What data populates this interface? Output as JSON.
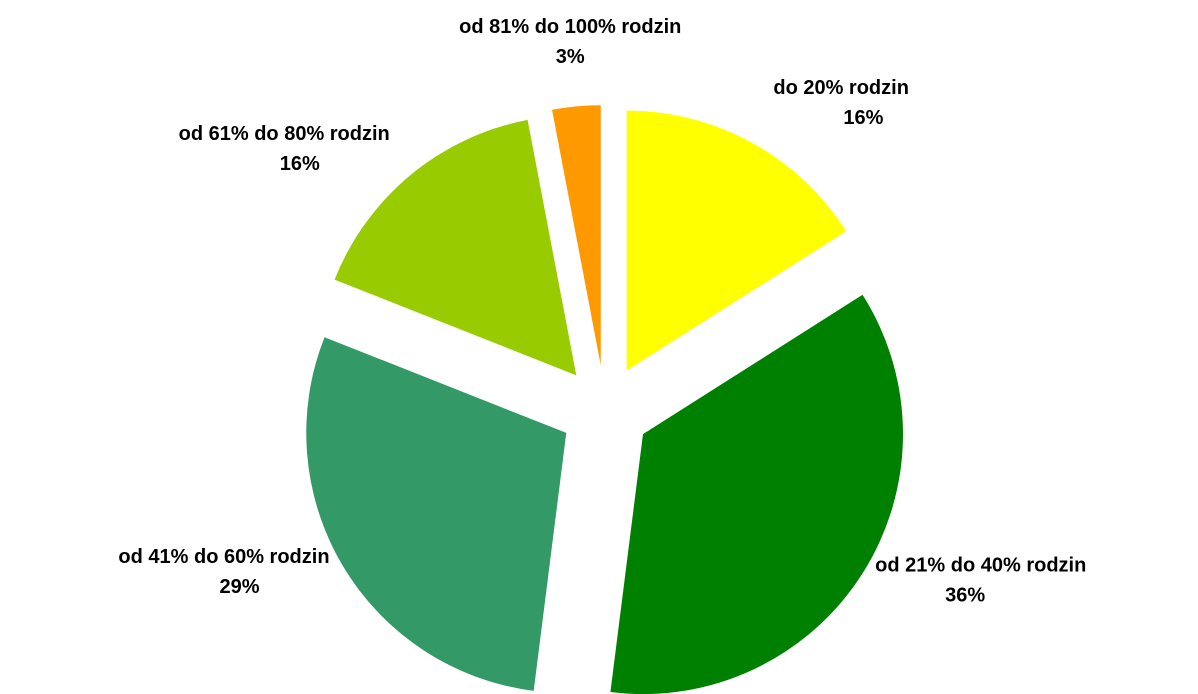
{
  "chart_data": {
    "type": "pie",
    "categories": [
      "do 20% rodzin",
      "od 21% do 40% rodzin",
      "od 41% do 60% rodzin",
      "od 61% do 80% rodzin",
      "od 81% do 100% rodzin"
    ],
    "values": [
      16,
      36,
      29,
      16,
      3
    ],
    "value_labels": [
      "16%",
      "36%",
      "29%",
      "16%",
      "3%"
    ],
    "colors": [
      "#ffff00",
      "#008000",
      "#339966",
      "#99cc00",
      "#ff9900"
    ]
  }
}
